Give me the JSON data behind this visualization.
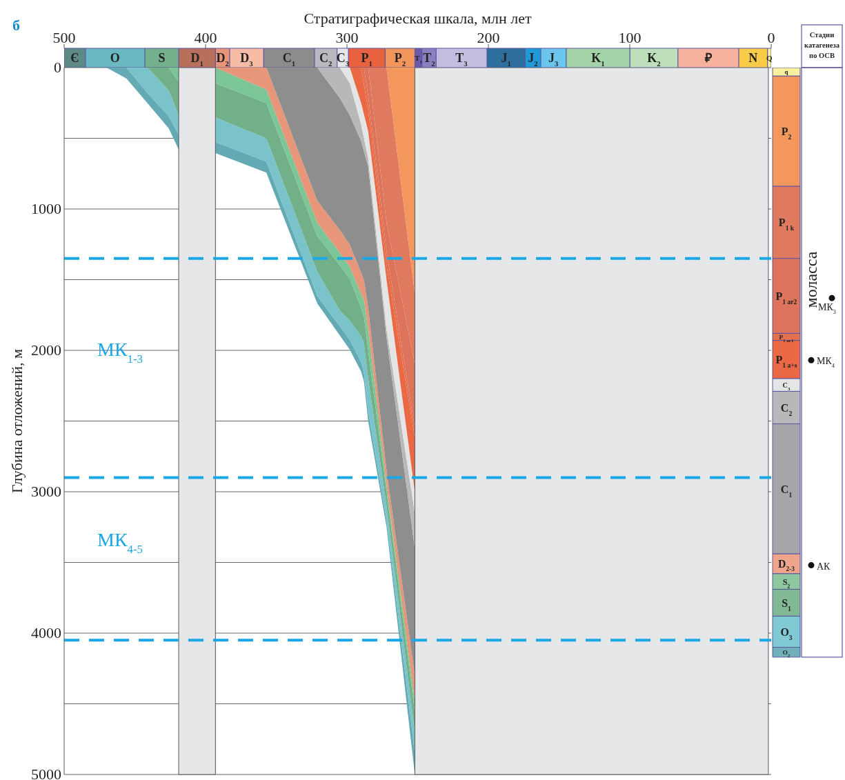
{
  "chart_data": [
    {
      "type": "area",
      "ylabel": "Глубина отложений, м",
      "x": [
        470,
        456,
        441,
        426,
        419,
        393,
        357,
        321,
        305,
        298,
        290,
        288,
        285,
        272,
        252
      ],
      "xlim": [
        500,
        0
      ],
      "tick_labels": "y",
      "ylim": [
        5000,
        0
      ],
      "yticks": [
        0,
        {
          "value": 500,
          "label": null
        },
        1000,
        {
          "value": 1500,
          "label": null
        },
        2000,
        {
          "value": 2500,
          "label": null
        },
        3000,
        {
          "value": 3500,
          "label": null
        },
        4000,
        {
          "value": 4500,
          "label": null
        },
        5000
      ],
      "grid": "y",
      "series": [
        {
          "color": "#64aab4",
          "values": [
            0,
            77,
            252,
            430,
            580,
            605,
            743,
            1668,
            1895,
            1995,
            2150,
            2220,
            2500,
            3250,
            5000
          ]
        },
        {
          "color": "#7ac3cb",
          "values": [
            null,
            0,
            181,
            345,
            475,
            527,
            665,
            1616,
            1830,
            1927,
            2080,
            2160,
            2430,
            3200,
            4850
          ]
        },
        {
          "color": "#72b08a",
          "values": [
            null,
            null,
            0,
            164,
            337,
            353,
            501,
            1443,
            1720,
            1789,
            1900,
            1950,
            2200,
            3100,
            4700
          ]
        },
        {
          "color": "#7cc596",
          "values": [
            null,
            null,
            null,
            0,
            100,
            111,
            250,
            1190,
            1400,
            1496,
            1700,
            1760,
            2000,
            3000,
            4560
          ]
        },
        {
          "color": "#e8967a",
          "values": [
            null,
            null,
            null,
            null,
            null,
            0,
            155,
            1098,
            1310,
            1409,
            1600,
            1640,
            1850,
            2950,
            4480
          ]
        },
        {
          "color": "#8e8e8e",
          "values": [
            null,
            null,
            null,
            null,
            null,
            null,
            0,
            942,
            1150,
            1254,
            1450,
            1500,
            1700,
            2850,
            4300
          ]
        },
        {
          "color": "#b8b8bb",
          "values": [
            null,
            null,
            null,
            null,
            null,
            null,
            null,
            0,
            216,
            337,
            520,
            590,
            700,
            1911,
            3400
          ]
        },
        {
          "color": "#e4e6e6",
          "values": [
            null,
            null,
            null,
            null,
            null,
            null,
            null,
            null,
            0,
            111,
            400,
            500,
            640,
            1850,
            3150
          ]
        },
        {
          "color": "#ea6843",
          "values": [
            null,
            null,
            null,
            null,
            null,
            null,
            null,
            null,
            null,
            0,
            250,
            330,
            450,
            1500,
            3000
          ]
        },
        {
          "color": "#e3704f",
          "values": [
            null,
            null,
            null,
            null,
            null,
            null,
            null,
            null,
            null,
            null,
            0,
            120,
            300,
            1400,
            2620
          ]
        },
        {
          "color": "#dc735a",
          "values": [
            null,
            null,
            null,
            null,
            null,
            null,
            null,
            null,
            null,
            null,
            null,
            0,
            200,
            1300,
            2550
          ]
        },
        {
          "color": "#e07a5f",
          "values": [
            null,
            null,
            null,
            null,
            null,
            null,
            null,
            null,
            null,
            null,
            null,
            null,
            0,
            1100,
            2100
          ]
        },
        {
          "color": "#f3975c",
          "values": [
            null,
            null,
            null,
            null,
            null,
            null,
            null,
            null,
            null,
            null,
            null,
            null,
            null,
            0,
            1600
          ]
        }
      ],
      "ref_lines": [
        {
          "axis": "y",
          "value": 1350,
          "color": "#1aa7e6",
          "line_style": "dashed"
        },
        {
          "axis": "y",
          "value": 2900,
          "color": "#1aa7e6",
          "line_style": "dashed"
        },
        {
          "axis": "y",
          "value": 4050,
          "color": "#1aa7e6",
          "line_style": "dashed"
        }
      ],
      "bands": [
        {
          "axis": "x",
          "from": 419,
          "to": 393,
          "color": "#e6e7e9"
        },
        {
          "axis": "x",
          "from": 252,
          "to": 2,
          "color": "#e6e7e9"
        }
      ],
      "annotations": [
        "б",
        "МК$_{1-3}$",
        "МК$_{4-5}$"
      ]
    },
    {
      "type": "bar",
      "orientation": "horizontal",
      "stacked": true,
      "xlabel": "Стратиграфическая шкала, млн лет",
      "categories": [
        null
      ],
      "xlim": [
        500,
        0
      ],
      "xticks": [
        500,
        400,
        300,
        200,
        100,
        0
      ],
      "tick_labels": "x",
      "series": [
        {
          "name": "Q",
          "color": "#f9ef9c",
          "values": [
            2.6
          ]
        },
        {
          "name": "N",
          "color": "#f9cb48",
          "values": [
            20.4
          ]
        },
        {
          "name": "₽",
          "color": "#f6b29c",
          "values": [
            43
          ]
        },
        {
          "name": "K$_{2}$",
          "color": "#bde0bb",
          "values": [
            34
          ]
        },
        {
          "name": "K$_{1}$",
          "color": "#a3d3a7",
          "values": [
            45
          ]
        },
        {
          "name": "J$_{3}$",
          "color": "#6cc5ec",
          "values": [
            18
          ]
        },
        {
          "name": "J$_{2}$",
          "color": "#1f9ad8",
          "values": [
            11
          ]
        },
        {
          "name": "J$_{1}$",
          "color": "#2f6f9e",
          "values": [
            27
          ]
        },
        {
          "name": "T$_{3}$",
          "color": "#c4bde0",
          "values": [
            36
          ]
        },
        {
          "name": "T$_{2}$",
          "color": "#8a80c0",
          "values": [
            10
          ]
        },
        {
          "name": "T$_{1}$",
          "color": "#6a5aa8",
          "values": [
            5
          ]
        },
        {
          "name": "P$_{2}$",
          "color": "#f3965b",
          "values": [
            21
          ]
        },
        {
          "name": "P$_{1}$",
          "color": "#e8623f",
          "values": [
            26
          ]
        },
        {
          "name": "C$_{3}$",
          "color": "#e6e7e9",
          "values": [
            8
          ]
        },
        {
          "name": "C$_{2}$",
          "color": "#b9b9bf",
          "values": [
            16
          ]
        },
        {
          "name": "C$_{1}$",
          "color": "#8c8c8c",
          "values": [
            36
          ]
        },
        {
          "name": "D$_{3}$",
          "color": "#f7bca6",
          "values": [
            24
          ]
        },
        {
          "name": "D$_{2}$",
          "color": "#e9957a",
          "values": [
            10
          ]
        },
        {
          "name": "D$_{1}$",
          "color": "#b86f5c",
          "values": [
            26
          ]
        },
        {
          "name": "S",
          "color": "#74b08c",
          "values": [
            24
          ]
        },
        {
          "name": "O",
          "color": "#6ab8c2",
          "values": [
            42
          ]
        },
        {
          "name": "Є",
          "color": "#5e8a86",
          "values": [
            15
          ]
        }
      ]
    },
    {
      "type": "bar",
      "stacked": true,
      "categories": [
        null
      ],
      "ylim": [
        5000,
        0
      ],
      "tick_labels": false,
      "series": [
        {
          "name": "q",
          "color": "#f9ef9c",
          "values": [
            60
          ]
        },
        {
          "name": "P$_{2}$",
          "color": "#f3975c",
          "values": [
            780
          ]
        },
        {
          "name": "P$_{1 k}$",
          "color": "#e07a5f",
          "values": [
            510
          ]
        },
        {
          "name": "P$_{1 ar2}$",
          "color": "#dc735a",
          "values": [
            530
          ]
        },
        {
          "name": "P$_{1 ar1}$",
          "color": "#e3704f",
          "values": [
            50
          ]
        },
        {
          "name": "P$_{1 a+s}$",
          "color": "#ea6843",
          "values": [
            270
          ]
        },
        {
          "name": "C$_{3}$",
          "color": "#e4e6e6",
          "values": [
            90
          ]
        },
        {
          "name": "C$_{2}$",
          "color": "#b8b8bb",
          "values": [
            230
          ]
        },
        {
          "name": "C$_{1}$",
          "color": "#a6a6aa",
          "values": [
            920
          ]
        },
        {
          "name": "D$_{2-3}$",
          "color": "#eea58c",
          "values": [
            140
          ]
        },
        {
          "name": "S$_{2}$",
          "color": "#8fc7a0",
          "values": [
            110
          ]
        },
        {
          "name": "S$_{1}$",
          "color": "#80b994",
          "values": [
            190
          ]
        },
        {
          "name": "O$_{3}$",
          "color": "#7fcad3",
          "values": [
            220
          ]
        },
        {
          "name": "O$_{2}$",
          "color": "#6fb0ba",
          "values": [
            70
          ]
        }
      ],
      "annotations": [
        "Стадии катагенеза по ОСВ",
        "моласса",
        "МК$_{3}$",
        "МК$_{4}$",
        "АК"
      ]
    }
  ]
}
